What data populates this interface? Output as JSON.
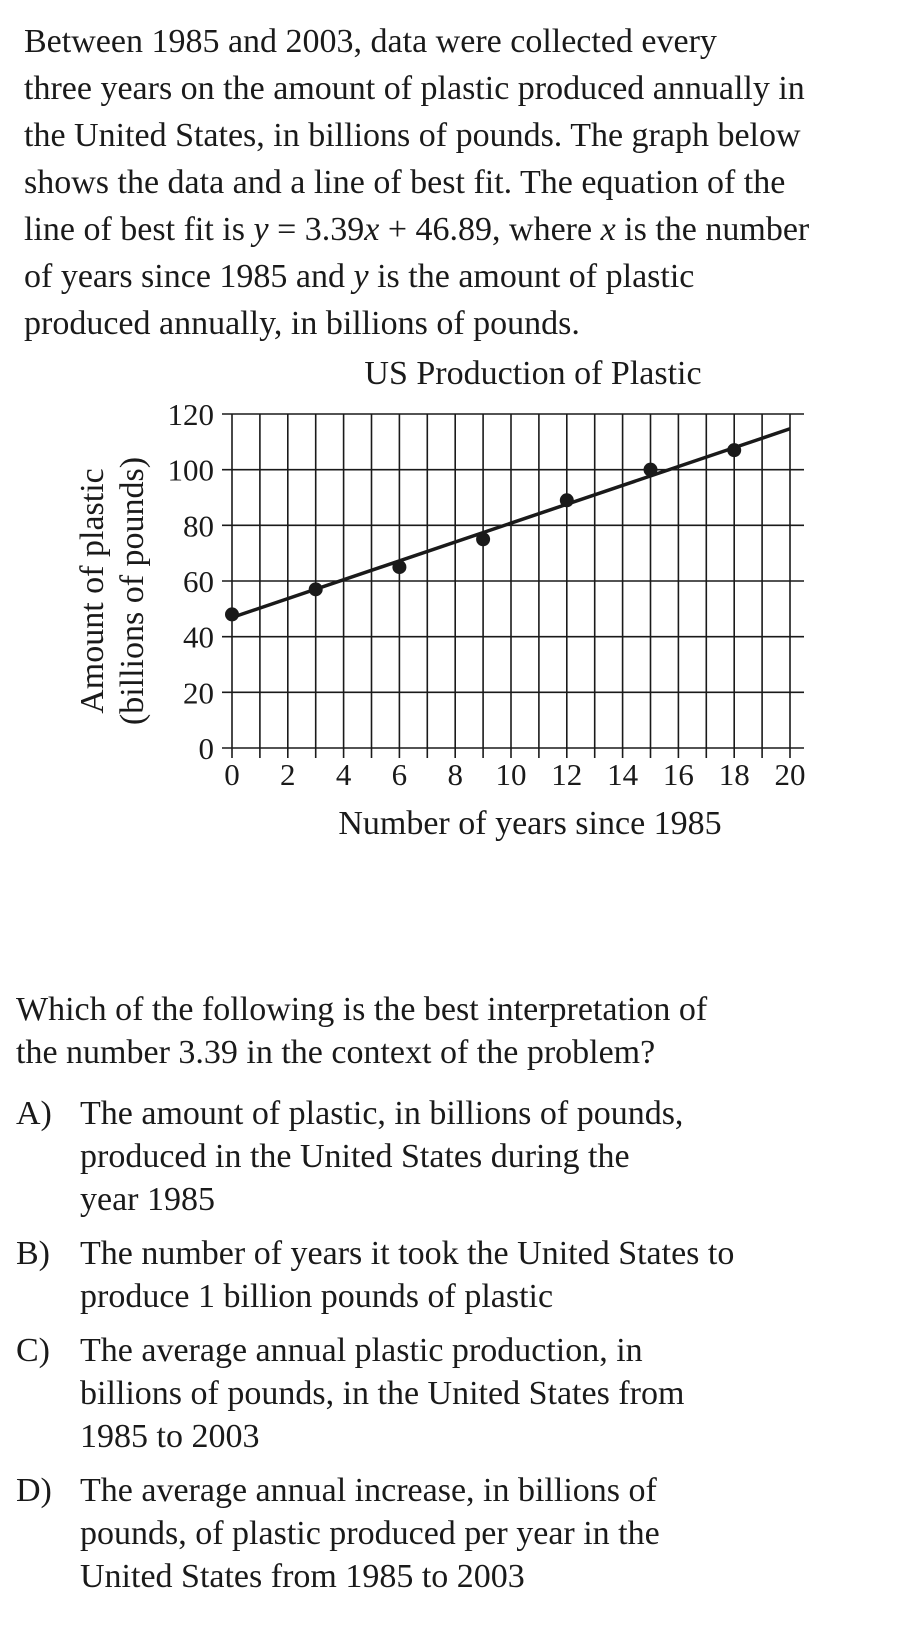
{
  "intro": {
    "l1": "Between 1985 and 2003, data were collected every",
    "l2": "three years on the amount of plastic produced annually in",
    "l3": "the United States, in billions of pounds. The graph below",
    "l4": "shows the data and a line of best fit. The equation of the",
    "l5a": "line of best fit is ",
    "l5_y": "y",
    "l5b": " = 3.39",
    "l5_x1": "x",
    "l5c": " + 46.89, where ",
    "l5_x2": "x",
    "l5d": " is the number",
    "l6a": "of years since 1985 and ",
    "l6_y": "y",
    "l6b": " is the amount of plastic",
    "l7": "produced annually, in billions of pounds."
  },
  "chart_data": {
    "type": "scatter",
    "title": "US Production of Plastic",
    "xlabel": "Number of years since 1985",
    "ylabel_lines": [
      "Amount of plastic",
      "(billions of pounds)"
    ],
    "xlim": [
      0,
      20
    ],
    "ylim": [
      0,
      120
    ],
    "xticks": [
      0,
      2,
      4,
      6,
      8,
      10,
      12,
      14,
      16,
      18,
      20
    ],
    "yticks": [
      0,
      20,
      40,
      60,
      80,
      100,
      120
    ],
    "grid": true,
    "x": [
      0,
      3,
      6,
      9,
      12,
      15,
      18
    ],
    "y": [
      48,
      57,
      65,
      75,
      89,
      100,
      107
    ],
    "best_fit": {
      "slope": 3.39,
      "intercept": 46.89
    }
  },
  "question": {
    "l1": "Which of the following is the best interpretation of",
    "l2": "the number 3.39 in the context of the problem?"
  },
  "choices": [
    {
      "letter": "A)",
      "lines": [
        "The amount of plastic, in billions of pounds,",
        "produced in the United States during the",
        "year 1985"
      ]
    },
    {
      "letter": "B)",
      "lines": [
        "The number of years it took the United States to",
        "produce 1 billion pounds of plastic"
      ]
    },
    {
      "letter": "C)",
      "lines": [
        "The average annual plastic production, in",
        "billions of pounds, in the United States from",
        "1985 to 2003"
      ]
    },
    {
      "letter": "D)",
      "lines": [
        "The average annual increase, in billions of",
        "pounds, of plastic produced per year in the",
        "United States from 1985 to 2003"
      ]
    }
  ]
}
